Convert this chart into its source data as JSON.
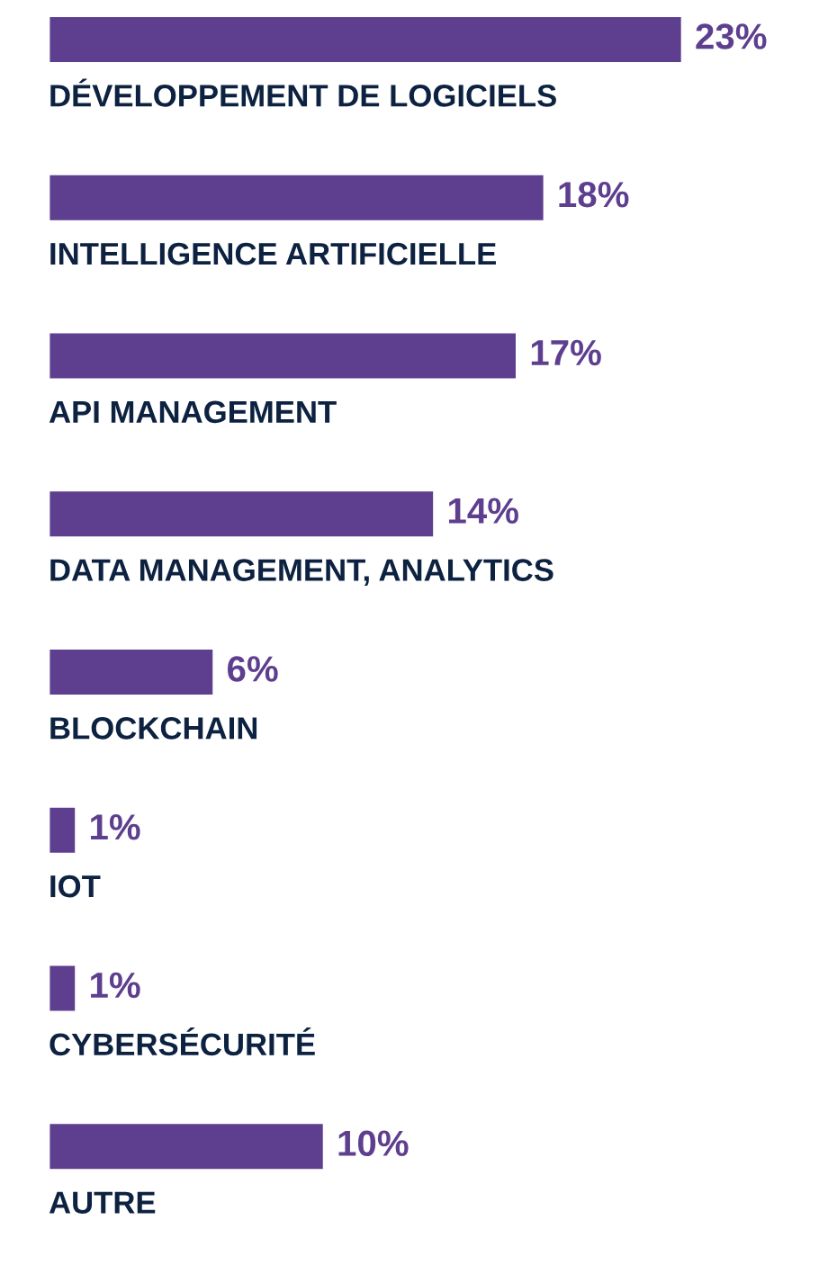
{
  "chart_data": {
    "type": "bar",
    "orientation": "horizontal",
    "categories": [
      "DÉVELOPPEMENT DE LOGICIELS",
      "INTELLIGENCE ARTIFICIELLE",
      "API MANAGEMENT",
      "DATA MANAGEMENT, ANALYTICS",
      "BLOCKCHAIN",
      "IOT",
      "CYBERSÉCURITÉ",
      "AUTRE"
    ],
    "values": [
      23,
      18,
      17,
      14,
      6,
      1,
      1,
      10
    ],
    "value_labels": [
      "23%",
      "18%",
      "17%",
      "14%",
      "6%",
      "1%",
      "1%",
      "10%"
    ],
    "color": "#5e3f8f"
  }
}
